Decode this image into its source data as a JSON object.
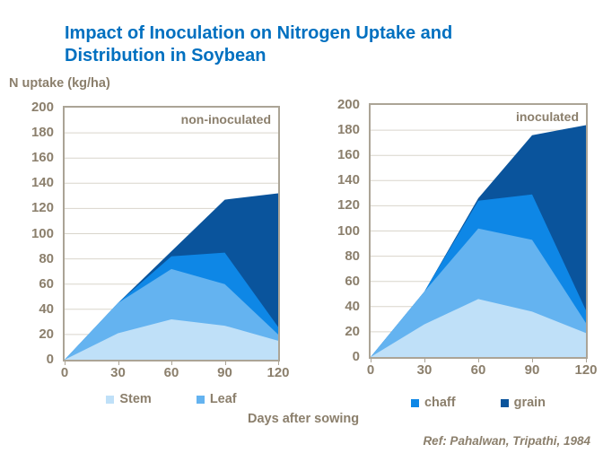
{
  "title": {
    "line1": "Impact of Inoculation on Nitrogen Uptake and",
    "line2": "Distribution in Soybean"
  },
  "y_axis_title": "N uptake (kg/ha)",
  "x_axis_title": "Days after sowing",
  "reference": "Ref: Pahalwan, Tripathi, 1984",
  "colors": {
    "title_blue": "#0070C0",
    "label_brown": "#8B7F6C",
    "plot_border": "#ABA496",
    "gridline": "#D9D5CC",
    "stem": "#BFE0F8",
    "leaf": "#64B3F0",
    "chaff": "#0E87E6",
    "grain": "#0A549C"
  },
  "chart_data": [
    {
      "type": "area",
      "stacked": true,
      "label": "non-inoculated",
      "x": [
        0,
        30,
        60,
        90,
        120
      ],
      "xlabel": "Days after sowing",
      "ylabel": "N uptake (kg/ha)",
      "ylim": [
        0,
        200
      ],
      "ytick_step": 20,
      "grid": true,
      "legend_position": "bottom",
      "series": [
        {
          "name": "Stem",
          "color": "#BFE0F8",
          "values": [
            0,
            21,
            32,
            27,
            15
          ]
        },
        {
          "name": "Leaf",
          "color": "#64B3F0",
          "values": [
            0,
            24,
            40,
            33,
            5
          ]
        },
        {
          "name": "chaff",
          "color": "#0E87E6",
          "values": [
            0,
            0,
            10,
            25,
            6
          ]
        },
        {
          "name": "grain",
          "color": "#0A549C",
          "values": [
            0,
            0,
            4,
            42,
            106
          ]
        }
      ],
      "legend": [
        "Stem",
        "Leaf"
      ]
    },
    {
      "type": "area",
      "stacked": true,
      "label": "inoculated",
      "x": [
        0,
        30,
        60,
        90,
        120
      ],
      "xlabel": "Days after sowing",
      "ylabel": "N uptake (kg/ha)",
      "ylim": [
        0,
        200
      ],
      "ytick_step": 20,
      "grid": true,
      "legend_position": "bottom",
      "series": [
        {
          "name": "Stem",
          "color": "#BFE0F8",
          "values": [
            0,
            26,
            46,
            36,
            19
          ]
        },
        {
          "name": "Leaf",
          "color": "#64B3F0",
          "values": [
            0,
            26,
            56,
            57,
            8
          ]
        },
        {
          "name": "chaff",
          "color": "#0E87E6",
          "values": [
            0,
            0,
            22,
            36,
            10
          ]
        },
        {
          "name": "grain",
          "color": "#0A549C",
          "values": [
            0,
            0,
            2,
            47,
            147
          ]
        }
      ],
      "legend": [
        "chaff",
        "grain"
      ]
    }
  ]
}
